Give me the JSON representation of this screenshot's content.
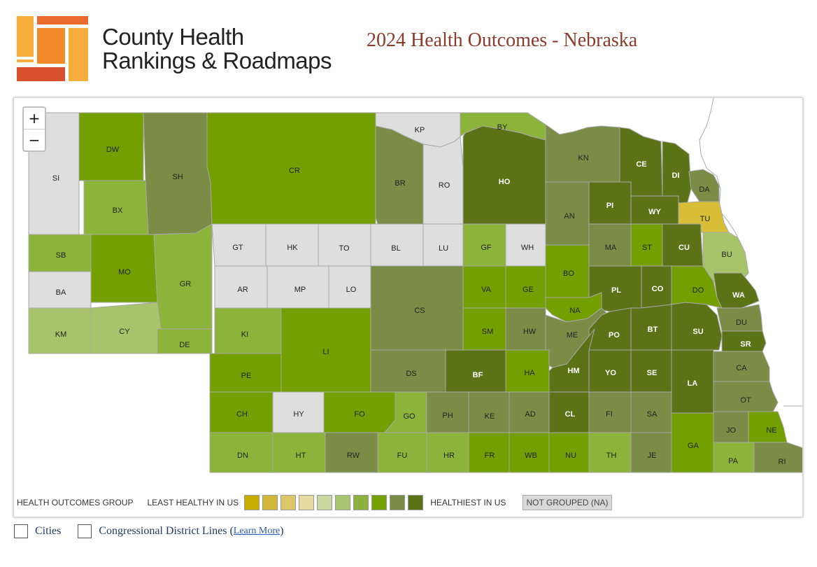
{
  "brand": {
    "line1": "County Health",
    "line2": "Rankings & Roadmaps"
  },
  "title": "2024 Health Outcomes - Nebraska",
  "zoom": {
    "in": "+",
    "out": "−"
  },
  "colors": {
    "q9": "#5b7317",
    "q8": "#7a8c45",
    "q7": "#73a000",
    "q6": "#8db43a",
    "q5": "#a8c46b",
    "q1": "#d8bd36",
    "na": "#dedede",
    "border": "#9a9a9a"
  },
  "counties": [
    {
      "code": "SI",
      "g": "na"
    },
    {
      "code": "DW",
      "g": "q7"
    },
    {
      "code": "SH",
      "g": "q8"
    },
    {
      "code": "CR",
      "g": "q7"
    },
    {
      "code": "KP",
      "g": "na"
    },
    {
      "code": "BY",
      "g": "q6"
    },
    {
      "code": "BX",
      "g": "q6"
    },
    {
      "code": "BR",
      "g": "q8"
    },
    {
      "code": "RO",
      "g": "na"
    },
    {
      "code": "HO",
      "g": "q9"
    },
    {
      "code": "KN",
      "g": "q8"
    },
    {
      "code": "CE",
      "g": "q9"
    },
    {
      "code": "DI",
      "g": "q9"
    },
    {
      "code": "DA",
      "g": "q8"
    },
    {
      "code": "TU",
      "g": "q1"
    },
    {
      "code": "AN",
      "g": "q8"
    },
    {
      "code": "PI",
      "g": "q9"
    },
    {
      "code": "WY",
      "g": "q9"
    },
    {
      "code": "SB",
      "g": "q6"
    },
    {
      "code": "MO",
      "g": "q7"
    },
    {
      "code": "GR",
      "g": "q6"
    },
    {
      "code": "GT",
      "g": "na"
    },
    {
      "code": "HK",
      "g": "na"
    },
    {
      "code": "TO",
      "g": "na"
    },
    {
      "code": "BL",
      "g": "na"
    },
    {
      "code": "LU",
      "g": "na"
    },
    {
      "code": "GF",
      "g": "q6"
    },
    {
      "code": "WH",
      "g": "na"
    },
    {
      "code": "MA",
      "g": "q8"
    },
    {
      "code": "ST",
      "g": "q7"
    },
    {
      "code": "CU",
      "g": "q9"
    },
    {
      "code": "BU",
      "g": "q5"
    },
    {
      "code": "BA",
      "g": "na"
    },
    {
      "code": "AR",
      "g": "na"
    },
    {
      "code": "MP",
      "g": "na"
    },
    {
      "code": "LO",
      "g": "na"
    },
    {
      "code": "CS",
      "g": "q8"
    },
    {
      "code": "VA",
      "g": "q7"
    },
    {
      "code": "GE",
      "g": "q7"
    },
    {
      "code": "BO",
      "g": "q7"
    },
    {
      "code": "PL",
      "g": "q9"
    },
    {
      "code": "CO",
      "g": "q9"
    },
    {
      "code": "DO",
      "g": "q7"
    },
    {
      "code": "WA",
      "g": "q9"
    },
    {
      "code": "NA",
      "g": "q7"
    },
    {
      "code": "KM",
      "g": "q5"
    },
    {
      "code": "CY",
      "g": "q5"
    },
    {
      "code": "KI",
      "g": "q6"
    },
    {
      "code": "SM",
      "g": "q7"
    },
    {
      "code": "HW",
      "g": "q8"
    },
    {
      "code": "ME",
      "g": "q8"
    },
    {
      "code": "PO",
      "g": "q9"
    },
    {
      "code": "BT",
      "g": "q9"
    },
    {
      "code": "SU",
      "g": "q9"
    },
    {
      "code": "DU",
      "g": "q8"
    },
    {
      "code": "DE",
      "g": "q6"
    },
    {
      "code": "LI",
      "g": "q7"
    },
    {
      "code": "SR",
      "g": "q9"
    },
    {
      "code": "PE",
      "g": "q7"
    },
    {
      "code": "DS",
      "g": "q8"
    },
    {
      "code": "BF",
      "g": "q9"
    },
    {
      "code": "HA",
      "g": "q7"
    },
    {
      "code": "HM",
      "g": "q9"
    },
    {
      "code": "YO",
      "g": "q9"
    },
    {
      "code": "SE",
      "g": "q9"
    },
    {
      "code": "LA",
      "g": "q9"
    },
    {
      "code": "CA",
      "g": "q8"
    },
    {
      "code": "CH",
      "g": "q7"
    },
    {
      "code": "HY",
      "g": "na"
    },
    {
      "code": "FO",
      "g": "q7"
    },
    {
      "code": "GO",
      "g": "q6"
    },
    {
      "code": "PH",
      "g": "q8"
    },
    {
      "code": "KE",
      "g": "q8"
    },
    {
      "code": "AD",
      "g": "q8"
    },
    {
      "code": "CL",
      "g": "q9"
    },
    {
      "code": "FI",
      "g": "q8"
    },
    {
      "code": "SA",
      "g": "q8"
    },
    {
      "code": "OT",
      "g": "q8"
    },
    {
      "code": "JO",
      "g": "q8"
    },
    {
      "code": "NE",
      "g": "q7"
    },
    {
      "code": "DN",
      "g": "q6"
    },
    {
      "code": "HT",
      "g": "q6"
    },
    {
      "code": "RW",
      "g": "q8"
    },
    {
      "code": "FU",
      "g": "q6"
    },
    {
      "code": "HR",
      "g": "q6"
    },
    {
      "code": "FR",
      "g": "q7"
    },
    {
      "code": "WB",
      "g": "q7"
    },
    {
      "code": "NU",
      "g": "q7"
    },
    {
      "code": "TH",
      "g": "q6"
    },
    {
      "code": "JE",
      "g": "q8"
    },
    {
      "code": "GA",
      "g": "q7"
    },
    {
      "code": "PA",
      "g": "q6"
    },
    {
      "code": "RI",
      "g": "q8"
    }
  ],
  "legend": {
    "group_label": "HEALTH OUTCOMES GROUP",
    "least": "LEAST HEALTHY IN US",
    "healthiest": "HEALTHIEST IN US",
    "na": "NOT GROUPED (NA)",
    "swatches": [
      "#c8ae00",
      "#d2b63a",
      "#dcc66a",
      "#e6dca0",
      "#c9d8a3",
      "#aac571",
      "#8eb13c",
      "#74a000",
      "#7a8c45",
      "#5b7317"
    ]
  },
  "options": {
    "cities": "Cities",
    "districts": "Congressional District Lines",
    "learn_open": "(",
    "learn_more": "Learn More",
    "learn_close": ")"
  }
}
